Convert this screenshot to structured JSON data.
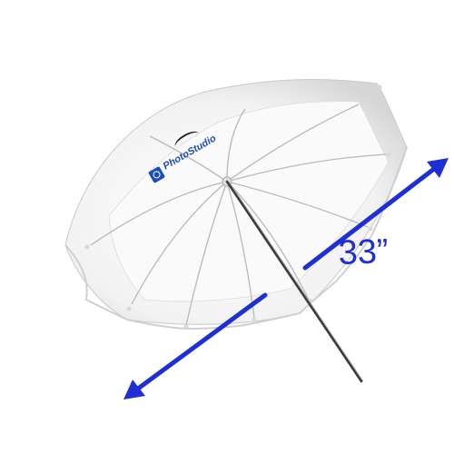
{
  "measurement": {
    "label": "33”"
  },
  "brand": {
    "text": "PhotoStudio",
    "logo_icon": "photostudio-logo-icon"
  },
  "colors": {
    "arrow": "#1f2fd6",
    "canopy": "#f4f4f4",
    "canopy_shadow": "#d9d9d9",
    "rib": "#b8b8b8",
    "shaft": "#3a3a3a",
    "brand": "#1d4fb8"
  },
  "icons": {
    "arrow_up": "arrow-up-right-icon",
    "arrow_down": "arrow-down-left-icon"
  }
}
